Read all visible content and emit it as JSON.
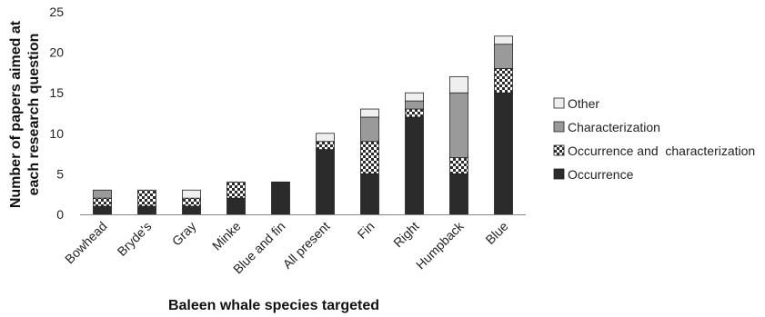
{
  "chart_data": {
    "type": "bar",
    "stacked": true,
    "categories": [
      "Bowhead",
      "Bryde's",
      "Gray",
      "Minke",
      "Blue and fin",
      "All present",
      "Fin",
      "Right",
      "Humpback",
      "Blue"
    ],
    "series": [
      {
        "name": "Occurrence",
        "values": [
          1,
          1,
          1,
          2,
          4,
          8,
          5,
          12,
          5,
          15
        ],
        "color": "#2b2b2b",
        "pattern": "solid"
      },
      {
        "name": "Occurrence and  characterization",
        "values": [
          1,
          2,
          1,
          2,
          0,
          1,
          4,
          1,
          2,
          3
        ],
        "color": "#2b2b2b",
        "pattern": "checker"
      },
      {
        "name": "Characterization",
        "values": [
          1,
          0,
          0,
          0,
          0,
          0,
          3,
          1,
          8,
          3
        ],
        "color": "#9a9a9a",
        "pattern": "solid"
      },
      {
        "name": "Other",
        "values": [
          0,
          0,
          1,
          0,
          0,
          1,
          1,
          1,
          2,
          1
        ],
        "color": "#efefef",
        "pattern": "solid"
      }
    ],
    "xlabel": "Baleen whale species targeted",
    "ylabel": "Number of papers aimed at each research question",
    "ylim": [
      0,
      25
    ],
    "yticks": [
      0,
      5,
      10,
      15,
      20,
      25
    ],
    "grid": false,
    "legend_position": "right",
    "legend_order": [
      "Other",
      "Characterization",
      "Occurrence and  characterization",
      "Occurrence"
    ]
  }
}
